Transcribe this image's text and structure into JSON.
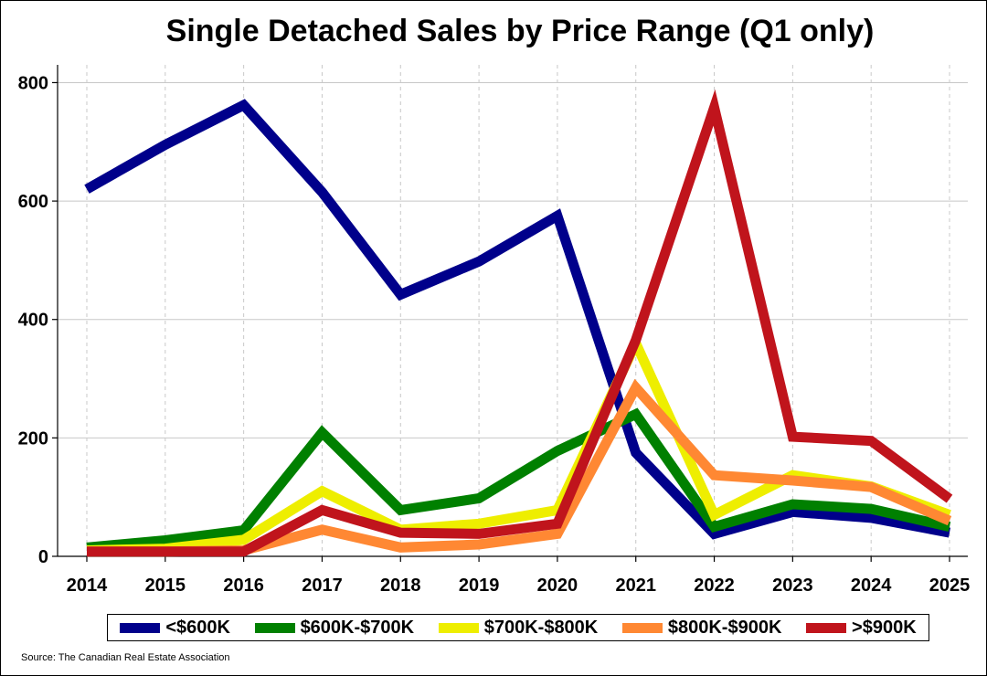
{
  "chart_data": {
    "type": "line",
    "title": "Single Detached Sales by Price Range (Q1 only)",
    "xlabel": "",
    "ylabel": "",
    "x": [
      "2014",
      "2015",
      "2016",
      "2017",
      "2018",
      "2019",
      "2020",
      "2021",
      "2022",
      "2023",
      "2024",
      "2025"
    ],
    "ylim": [
      0,
      830
    ],
    "yticks": [
      0,
      200,
      400,
      600,
      800
    ],
    "grid": {
      "horizontal": true,
      "vertical_dashed": true
    },
    "legend": "bottom",
    "series": [
      {
        "name": "<$600K",
        "color": "#00008b",
        "values": [
          620,
          695,
          762,
          615,
          442,
          498,
          575,
          175,
          38,
          75,
          65,
          40
        ]
      },
      {
        "name": "$600K-$700K",
        "color": "#008000",
        "values": [
          15,
          27,
          44,
          209,
          78,
          98,
          178,
          240,
          50,
          88,
          80,
          50
        ]
      },
      {
        "name": "$700K-$800K",
        "color": "#eeee00",
        "values": [
          10,
          13,
          28,
          110,
          45,
          55,
          78,
          360,
          70,
          137,
          118,
          70
        ]
      },
      {
        "name": "$800K-$900K",
        "color": "#ff8833",
        "values": [
          8,
          8,
          10,
          45,
          15,
          20,
          38,
          285,
          137,
          128,
          117,
          60
        ]
      },
      {
        "name": ">$900K",
        "color": "#c0141c",
        "values": [
          8,
          8,
          8,
          78,
          40,
          38,
          55,
          365,
          758,
          202,
          195,
          97
        ]
      }
    ]
  },
  "source": "Source: The Canadian Real Estate Association"
}
